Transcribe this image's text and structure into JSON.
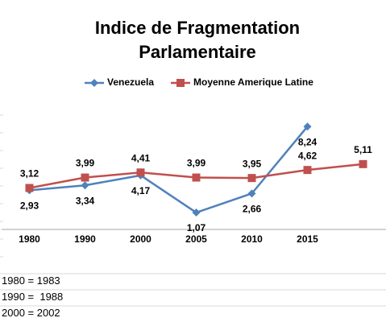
{
  "chart_data": {
    "type": "line",
    "title": "Indice de Fragmentation Parlamentaire",
    "categories": [
      "1980",
      "1990",
      "2000",
      "2005",
      "2010",
      "2015",
      null
    ],
    "series": [
      {
        "name": "Venezuela",
        "color": "#4f81bd",
        "marker": "diamond",
        "values": [
          2.93,
          3.34,
          4.17,
          1.07,
          2.66,
          8.24,
          null
        ],
        "value_labels": [
          "2,93",
          "3,34",
          "4,17",
          "1,07",
          "2,66",
          "8,24",
          null
        ]
      },
      {
        "name": "Moyenne Amerique Latine",
        "color": "#c0504d",
        "marker": "square",
        "values": [
          3.12,
          3.99,
          4.41,
          3.99,
          3.95,
          4.62,
          5.11
        ],
        "value_labels": [
          "3,12",
          "3,99",
          "4,41",
          "3,99",
          "3,95",
          "4,62",
          "5,11"
        ]
      }
    ],
    "ylim": [
      0,
      10
    ],
    "legend": "top"
  },
  "notes": [
    "1980 = 1983",
    "1990 =  1988",
    "2000 = 2002"
  ]
}
